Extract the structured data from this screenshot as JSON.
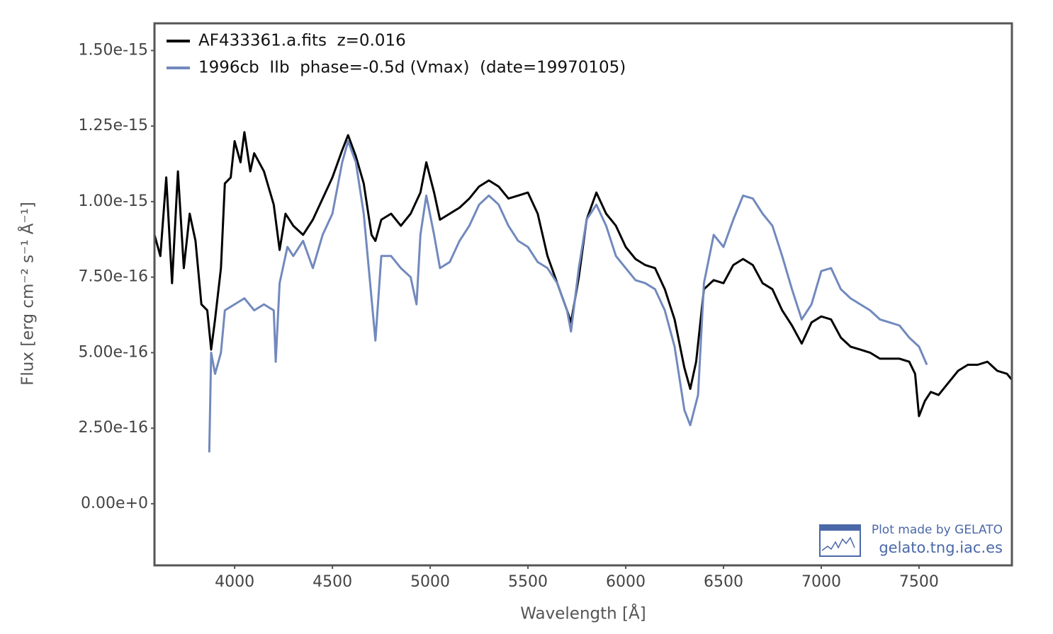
{
  "chart_data": {
    "type": "line",
    "xlabel": "Wavelength [Å]",
    "ylabel": "Flux [erg cm⁻² s⁻¹ Å⁻¹]",
    "xlim": [
      3590,
      7975
    ],
    "ylim": [
      -2.04e-16,
      1.59e-15
    ],
    "xticks": [
      4000,
      4500,
      5000,
      5500,
      6000,
      6500,
      7000,
      7500
    ],
    "yticks": [
      {
        "value": 0,
        "label": "0.00e+0"
      },
      {
        "value": 2.5e-16,
        "label": "2.50e-16"
      },
      {
        "value": 5e-16,
        "label": "5.00e-16"
      },
      {
        "value": 7.5e-16,
        "label": "7.50e-16"
      },
      {
        "value": 1e-15,
        "label": "1.00e-15"
      },
      {
        "value": 1.25e-15,
        "label": "1.25e-15"
      },
      {
        "value": 1.5e-15,
        "label": "1.50e-15"
      }
    ],
    "grid": false,
    "legend": "upper left",
    "watermark": [
      "Plot made by GELATO",
      "gelato.tng.iac.es"
    ],
    "series": [
      {
        "name": "AF433361.a.fits  z=0.016",
        "color": "#000000",
        "x": [
          3590,
          3620,
          3650,
          3680,
          3710,
          3740,
          3770,
          3800,
          3830,
          3860,
          3880,
          3900,
          3930,
          3950,
          3980,
          4000,
          4030,
          4050,
          4080,
          4100,
          4150,
          4200,
          4230,
          4260,
          4300,
          4350,
          4400,
          4450,
          4500,
          4550,
          4580,
          4620,
          4660,
          4700,
          4720,
          4750,
          4800,
          4850,
          4900,
          4950,
          4980,
          5020,
          5050,
          5100,
          5150,
          5200,
          5250,
          5300,
          5350,
          5400,
          5450,
          5500,
          5550,
          5600,
          5650,
          5700,
          5720,
          5760,
          5800,
          5850,
          5900,
          5950,
          6000,
          6050,
          6100,
          6150,
          6200,
          6250,
          6300,
          6330,
          6360,
          6400,
          6450,
          6500,
          6550,
          6600,
          6650,
          6700,
          6750,
          6800,
          6850,
          6900,
          6950,
          7000,
          7050,
          7100,
          7150,
          7200,
          7250,
          7300,
          7350,
          7400,
          7450,
          7480,
          7500,
          7530,
          7560,
          7600,
          7650,
          7700,
          7750,
          7800,
          7850,
          7900,
          7950,
          7975
        ],
        "values": [
          8.9e-16,
          8.2e-16,
          1.08e-15,
          7.3e-16,
          1.1e-15,
          7.8e-16,
          9.6e-16,
          8.7e-16,
          6.6e-16,
          6.4e-16,
          5.1e-16,
          6.1e-16,
          7.8e-16,
          1.06e-15,
          1.08e-15,
          1.2e-15,
          1.13e-15,
          1.23e-15,
          1.1e-15,
          1.16e-15,
          1.1e-15,
          9.9e-16,
          8.4e-16,
          9.6e-16,
          9.2e-16,
          8.9e-16,
          9.4e-16,
          1.01e-15,
          1.08e-15,
          1.17e-15,
          1.22e-15,
          1.15e-15,
          1.06e-15,
          8.9e-16,
          8.7e-16,
          9.4e-16,
          9.6e-16,
          9.2e-16,
          9.6e-16,
          1.03e-15,
          1.13e-15,
          1.03e-15,
          9.4e-16,
          9.6e-16,
          9.8e-16,
          1.01e-15,
          1.05e-15,
          1.07e-15,
          1.05e-15,
          1.01e-15,
          1.02e-15,
          1.03e-15,
          9.6e-16,
          8.2e-16,
          7.3e-16,
          6.4e-16,
          6e-16,
          7.5e-16,
          9.4e-16,
          1.03e-15,
          9.6e-16,
          9.2e-16,
          8.5e-16,
          8.1e-16,
          7.9e-16,
          7.8e-16,
          7.1e-16,
          6.1e-16,
          4.5e-16,
          3.8e-16,
          4.7e-16,
          7.1e-16,
          7.4e-16,
          7.3e-16,
          7.9e-16,
          8.1e-16,
          7.9e-16,
          7.3e-16,
          7.1e-16,
          6.4e-16,
          5.9e-16,
          5.3e-16,
          6e-16,
          6.2e-16,
          6.1e-16,
          5.5e-16,
          5.2e-16,
          5.1e-16,
          5e-16,
          4.8e-16,
          4.8e-16,
          4.8e-16,
          4.7e-16,
          4.3e-16,
          2.9e-16,
          3.4e-16,
          3.7e-16,
          3.6e-16,
          4e-16,
          4.4e-16,
          4.6e-16,
          4.6e-16,
          4.7e-16,
          4.4e-16,
          4.3e-16,
          4.1e-16
        ]
      },
      {
        "name": "1996cb  IIb  phase=-0.5d (Vmax)  (date=19970105)",
        "color": "#7189bd",
        "x": [
          3870,
          3880,
          3900,
          3930,
          3950,
          4000,
          4050,
          4100,
          4150,
          4200,
          4210,
          4230,
          4270,
          4300,
          4350,
          4400,
          4450,
          4500,
          4550,
          4580,
          4620,
          4660,
          4700,
          4720,
          4750,
          4800,
          4850,
          4900,
          4930,
          4950,
          4980,
          5020,
          5050,
          5100,
          5150,
          5200,
          5250,
          5300,
          5350,
          5400,
          5450,
          5500,
          5550,
          5600,
          5650,
          5700,
          5720,
          5760,
          5800,
          5850,
          5900,
          5950,
          6000,
          6050,
          6100,
          6150,
          6200,
          6250,
          6300,
          6330,
          6370,
          6400,
          6450,
          6500,
          6550,
          6600,
          6650,
          6700,
          6750,
          6800,
          6850,
          6900,
          6950,
          7000,
          7050,
          7100,
          7150,
          7200,
          7250,
          7300,
          7350,
          7400,
          7450,
          7500,
          7540
        ],
        "values": [
          1.7e-16,
          5e-16,
          4.3e-16,
          5e-16,
          6.4e-16,
          6.6e-16,
          6.8e-16,
          6.4e-16,
          6.6e-16,
          6.4e-16,
          4.7e-16,
          7.3e-16,
          8.5e-16,
          8.2e-16,
          8.7e-16,
          7.8e-16,
          8.9e-16,
          9.6e-16,
          1.13e-15,
          1.2e-15,
          1.13e-15,
          9.6e-16,
          6.8e-16,
          5.4e-16,
          8.2e-16,
          8.2e-16,
          7.8e-16,
          7.5e-16,
          6.6e-16,
          8.9e-16,
          1.02e-15,
          8.9e-16,
          7.8e-16,
          8e-16,
          8.7e-16,
          9.2e-16,
          9.9e-16,
          1.02e-15,
          9.9e-16,
          9.2e-16,
          8.7e-16,
          8.5e-16,
          8e-16,
          7.8e-16,
          7.3e-16,
          6.4e-16,
          5.7e-16,
          7.8e-16,
          9.4e-16,
          9.9e-16,
          9.2e-16,
          8.2e-16,
          7.8e-16,
          7.4e-16,
          7.3e-16,
          7.1e-16,
          6.4e-16,
          5.2e-16,
          3.1e-16,
          2.6e-16,
          3.6e-16,
          7.3e-16,
          8.9e-16,
          8.5e-16,
          9.4e-16,
          1.02e-15,
          1.01e-15,
          9.6e-16,
          9.2e-16,
          8.2e-16,
          7.1e-16,
          6.1e-16,
          6.6e-16,
          7.7e-16,
          7.8e-16,
          7.1e-16,
          6.8e-16,
          6.6e-16,
          6.4e-16,
          6.1e-16,
          6e-16,
          5.9e-16,
          5.5e-16,
          5.2e-16,
          4.6e-16
        ]
      }
    ]
  }
}
